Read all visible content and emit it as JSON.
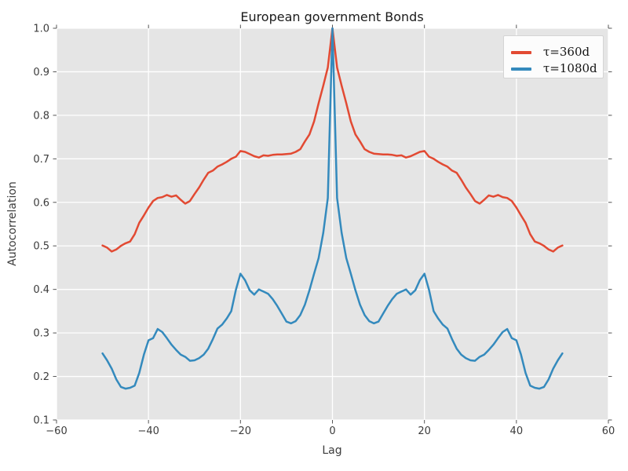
{
  "style": {
    "figure_bg": "#ffffff",
    "plot_bg": "#e5e5e5",
    "grid_color": "#ffffff",
    "tick_color": "#555555",
    "tick_label_color": "#3c3c3c",
    "title_color": "#1a1a1a",
    "legend_bg": "#fcfcfc",
    "legend_border": "#d4d4d4"
  },
  "chart_data": {
    "type": "line",
    "title": "European government Bonds",
    "xlabel": "Lag",
    "ylabel": "Autocorrelation",
    "xlim": [
      -60,
      60
    ],
    "ylim": [
      0.1,
      1.0
    ],
    "grid": true,
    "legend_position": "upper right",
    "x_ticks": [
      -60,
      -40,
      -20,
      0,
      20,
      40,
      60
    ],
    "x_tick_labels": [
      "−60",
      "−40",
      "−20",
      "0",
      "20",
      "40",
      "60"
    ],
    "y_ticks": [
      0.1,
      0.2,
      0.3,
      0.4,
      0.5,
      0.6,
      0.7,
      0.8,
      0.9,
      1.0
    ],
    "y_tick_labels": [
      "0.1",
      "0.2",
      "0.3",
      "0.4",
      "0.5",
      "0.6",
      "0.7",
      "0.8",
      "0.9",
      "1.0"
    ],
    "x": [
      -50,
      -49,
      -48,
      -47,
      -46,
      -45,
      -44,
      -43,
      -42,
      -41,
      -40,
      -39,
      -38,
      -37,
      -36,
      -35,
      -34,
      -33,
      -32,
      -31,
      -30,
      -29,
      -28,
      -27,
      -26,
      -25,
      -24,
      -23,
      -22,
      -21,
      -20,
      -19,
      -18,
      -17,
      -16,
      -15,
      -14,
      -13,
      -12,
      -11,
      -10,
      -9,
      -8,
      -7,
      -6,
      -5,
      -4,
      -3,
      -2,
      -1,
      0,
      1,
      2,
      3,
      4,
      5,
      6,
      7,
      8,
      9,
      10,
      11,
      12,
      13,
      14,
      15,
      16,
      17,
      18,
      19,
      20,
      21,
      22,
      23,
      24,
      25,
      26,
      27,
      28,
      29,
      30,
      31,
      32,
      33,
      34,
      35,
      36,
      37,
      38,
      39,
      40,
      41,
      42,
      43,
      44,
      45,
      46,
      47,
      48,
      49,
      50
    ],
    "series": [
      {
        "name": "τ=360d",
        "color": "#e24a33",
        "values": [
          0.501,
          0.496,
          0.487,
          0.492,
          0.5,
          0.506,
          0.51,
          0.527,
          0.553,
          0.57,
          0.588,
          0.603,
          0.61,
          0.612,
          0.617,
          0.613,
          0.616,
          0.606,
          0.597,
          0.603,
          0.619,
          0.634,
          0.652,
          0.668,
          0.673,
          0.682,
          0.687,
          0.693,
          0.7,
          0.705,
          0.718,
          0.716,
          0.711,
          0.706,
          0.703,
          0.708,
          0.707,
          0.709,
          0.71,
          0.71,
          0.711,
          0.712,
          0.716,
          0.722,
          0.74,
          0.756,
          0.786,
          0.828,
          0.868,
          0.91,
          1.0,
          0.91,
          0.868,
          0.828,
          0.786,
          0.756,
          0.74,
          0.722,
          0.716,
          0.712,
          0.711,
          0.71,
          0.71,
          0.709,
          0.707,
          0.708,
          0.703,
          0.706,
          0.711,
          0.716,
          0.718,
          0.705,
          0.7,
          0.693,
          0.687,
          0.682,
          0.673,
          0.668,
          0.652,
          0.634,
          0.619,
          0.603,
          0.597,
          0.606,
          0.616,
          0.613,
          0.617,
          0.612,
          0.61,
          0.603,
          0.588,
          0.57,
          0.553,
          0.527,
          0.51,
          0.506,
          0.5,
          0.492,
          0.487,
          0.496,
          0.501
        ]
      },
      {
        "name": "τ=1080d",
        "color": "#348abd",
        "values": [
          0.253,
          0.237,
          0.218,
          0.193,
          0.176,
          0.172,
          0.174,
          0.179,
          0.208,
          0.25,
          0.283,
          0.288,
          0.309,
          0.302,
          0.288,
          0.273,
          0.261,
          0.25,
          0.245,
          0.236,
          0.237,
          0.242,
          0.25,
          0.264,
          0.286,
          0.31,
          0.319,
          0.333,
          0.35,
          0.399,
          0.436,
          0.421,
          0.398,
          0.388,
          0.4,
          0.395,
          0.39,
          0.378,
          0.362,
          0.344,
          0.326,
          0.322,
          0.327,
          0.341,
          0.365,
          0.398,
          0.436,
          0.472,
          0.53,
          0.61,
          1.0,
          0.61,
          0.53,
          0.472,
          0.436,
          0.398,
          0.365,
          0.341,
          0.327,
          0.322,
          0.326,
          0.344,
          0.362,
          0.378,
          0.39,
          0.395,
          0.4,
          0.388,
          0.398,
          0.421,
          0.436,
          0.399,
          0.35,
          0.333,
          0.319,
          0.31,
          0.286,
          0.264,
          0.25,
          0.242,
          0.237,
          0.236,
          0.245,
          0.25,
          0.261,
          0.273,
          0.288,
          0.302,
          0.309,
          0.288,
          0.283,
          0.25,
          0.208,
          0.179,
          0.174,
          0.172,
          0.176,
          0.193,
          0.218,
          0.237,
          0.253
        ]
      }
    ]
  }
}
